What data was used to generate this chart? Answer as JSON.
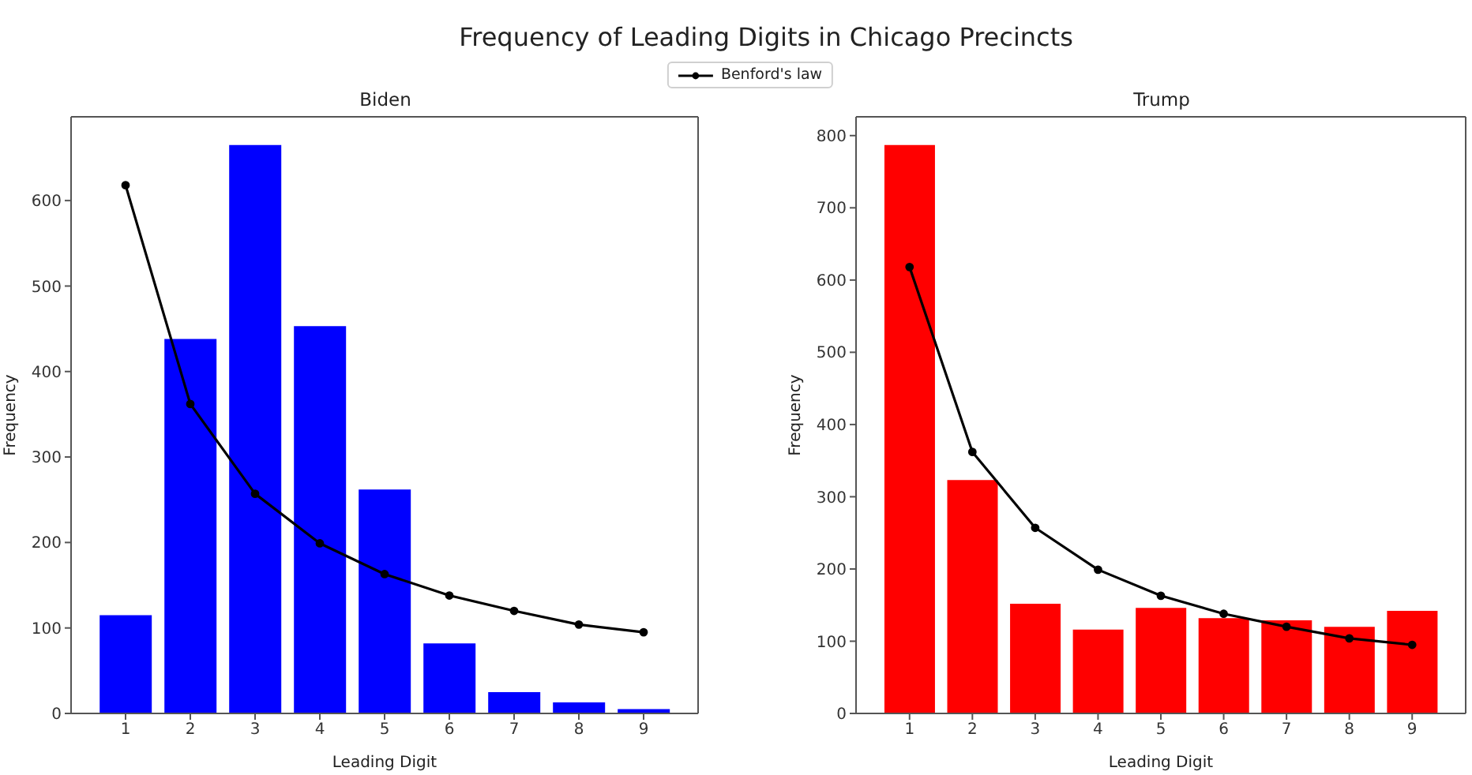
{
  "chart_data": [
    {
      "type": "bar",
      "title": "Frequency of Leading Digits in Chicago Precincts",
      "subtitle": "Biden",
      "xlabel": "Leading Digit",
      "ylabel": "Frequency",
      "categories": [
        "1",
        "2",
        "3",
        "4",
        "5",
        "6",
        "7",
        "8",
        "9"
      ],
      "series": [
        {
          "color": "#0000ff",
          "values": [
            115,
            438,
            665,
            453,
            262,
            82,
            25,
            13,
            5
          ]
        },
        {
          "type": "line",
          "name": "Benford's law",
          "color": "#000000",
          "marker": "circle",
          "values": [
            618,
            362,
            257,
            199,
            163,
            138,
            120,
            104,
            95
          ]
        }
      ],
      "ylim": [
        0,
        698
      ],
      "yticks": [
        0,
        100,
        200,
        300,
        400,
        500,
        600
      ],
      "legend": "top"
    },
    {
      "type": "bar",
      "subtitle": "Trump",
      "xlabel": "Leading Digit",
      "ylabel": "Frequency",
      "categories": [
        "1",
        "2",
        "3",
        "4",
        "5",
        "6",
        "7",
        "8",
        "9"
      ],
      "series": [
        {
          "color": "#ff0000",
          "values": [
            787,
            323,
            152,
            116,
            146,
            132,
            129,
            120,
            142
          ]
        },
        {
          "type": "line",
          "color": "#000000",
          "marker": "circle",
          "values": [
            618,
            362,
            257,
            199,
            163,
            138,
            120,
            104,
            95
          ]
        }
      ],
      "ylim": [
        0,
        826
      ],
      "yticks": [
        0,
        100,
        200,
        300,
        400,
        500,
        600,
        700,
        800
      ]
    }
  ]
}
